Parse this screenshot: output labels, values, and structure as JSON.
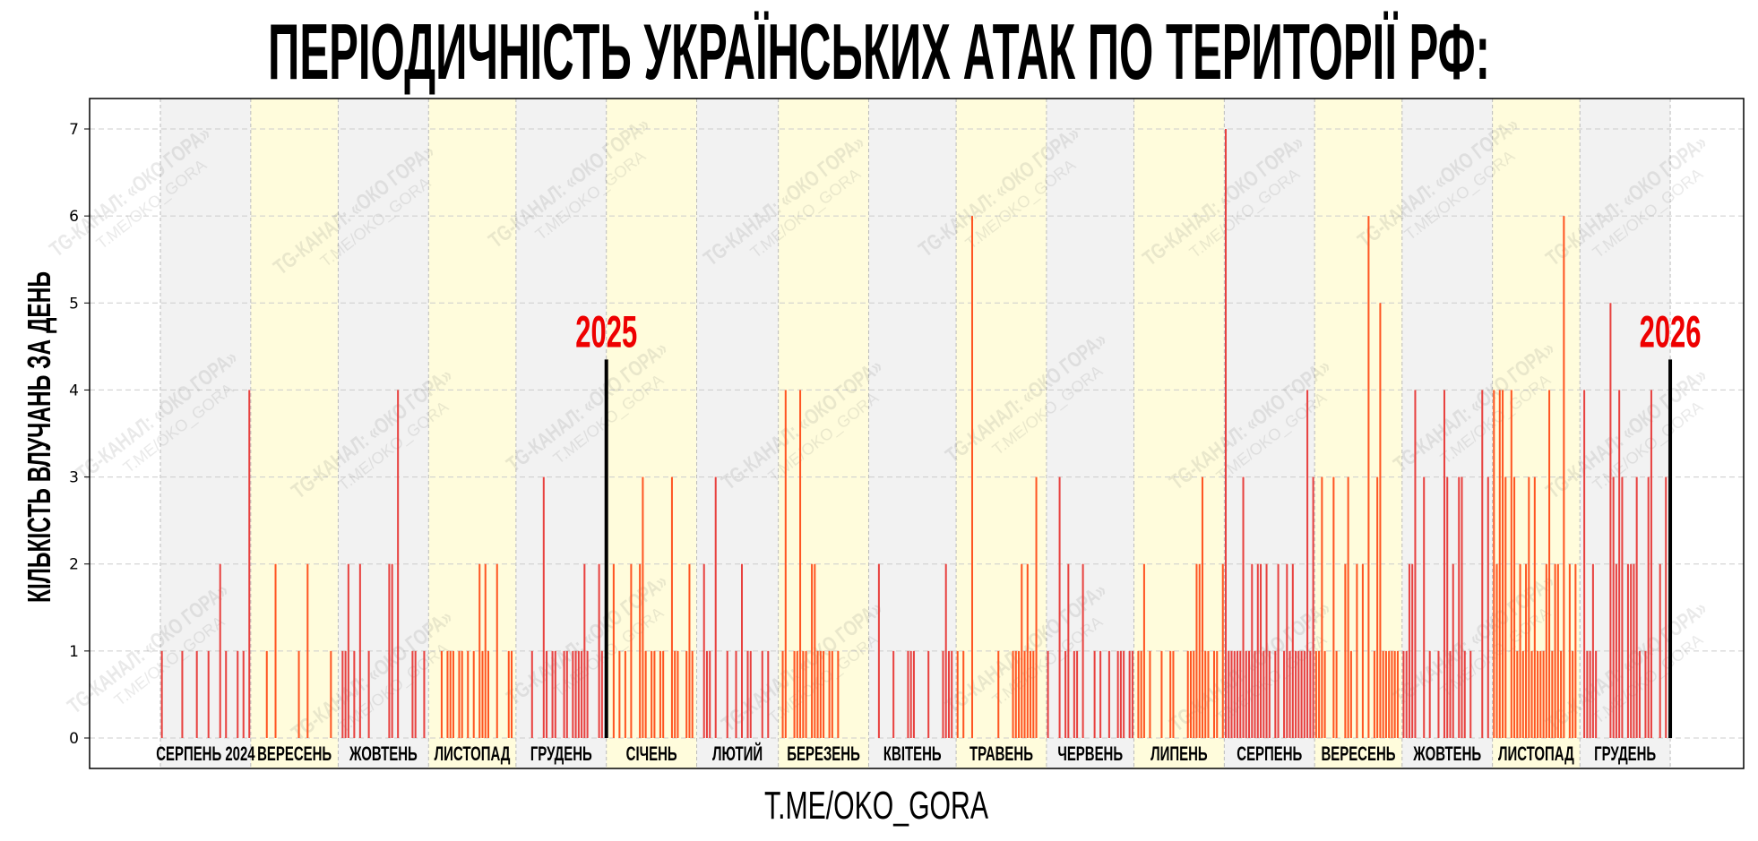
{
  "title": "ПЕРІОДИЧНІСТЬ УКРАЇНСЬКИХ АТАК ПО ТЕРИТОРІЇ РФ:",
  "footer": "T.ME/OKO_GORA",
  "watermark": {
    "line1": "TG-КАНАЛ: «ОКО ГОРА»",
    "line2": "T.ME/OKO_GORA"
  },
  "colors": {
    "bar_gray_month": "#e8413f",
    "bar_yellow_month": "#ff5522",
    "band_gray": "#f2f2f2",
    "band_yellow": "#fffcdc",
    "year_label": "#ee0000",
    "year_line": "#000000"
  },
  "chart_data": {
    "type": "bar",
    "title": "ПЕРІОДИЧНІСТЬ УКРАЇНСЬКИХ АТАК ПО ТЕРИТОРІЇ РФ:",
    "xlabel": "",
    "ylabel": "КІЛЬКІСТЬ ВЛУЧАНЬ ЗА ДЕНЬ",
    "ylim": [
      -0.35,
      7.35
    ],
    "xlim": [
      "2024-07-08",
      "2026-01-25"
    ],
    "yticks": [
      "0",
      "1",
      "2",
      "3",
      "4",
      "5",
      "6",
      "7"
    ],
    "grid": true,
    "start_date": "2024-08-01",
    "year_markers": [
      {
        "date": "2025-01-01",
        "label": "2025",
        "height": 4.35
      },
      {
        "date": "2026-01-01",
        "label": "2026",
        "height": 4.35
      }
    ],
    "months": [
      {
        "label": "СЕРПЕНЬ 2024",
        "band": "gray",
        "daily": [
          1,
          0,
          0,
          0,
          0,
          0,
          0,
          1,
          0,
          0,
          0,
          0,
          1,
          0,
          0,
          0,
          1,
          0,
          0,
          0,
          2,
          0,
          1,
          0,
          0,
          0,
          1,
          0,
          1,
          0,
          4
        ]
      },
      {
        "label": "ВЕРЕСЕНЬ",
        "band": "yellow",
        "daily": [
          0,
          0,
          0,
          0,
          0,
          1,
          0,
          0,
          2,
          0,
          0,
          0,
          0,
          0,
          0,
          0,
          1,
          0,
          0,
          2,
          0,
          0,
          0,
          0,
          0,
          0,
          0,
          1,
          0,
          0
        ]
      },
      {
        "label": "ЖОВТЕНЬ",
        "band": "gray",
        "daily": [
          0,
          1,
          1,
          2,
          0,
          1,
          0,
          2,
          0,
          0,
          1,
          0,
          0,
          0,
          0,
          0,
          0,
          2,
          2,
          0,
          4,
          0,
          0,
          0,
          0,
          1,
          1,
          0,
          0,
          1,
          0
        ]
      },
      {
        "label": "ЛИСТОПАД",
        "band": "yellow",
        "daily": [
          0,
          0,
          0,
          0,
          1,
          0,
          1,
          1,
          1,
          0,
          1,
          1,
          0,
          1,
          0,
          1,
          0,
          2,
          1,
          2,
          1,
          0,
          0,
          2,
          0,
          0,
          0,
          1,
          1,
          0
        ]
      },
      {
        "label": "ГРУДЕНЬ",
        "band": "gray",
        "daily": [
          0,
          0,
          0,
          0,
          0,
          1,
          0,
          0,
          0,
          3,
          1,
          0,
          1,
          1,
          0,
          0,
          1,
          1,
          0,
          1,
          1,
          1,
          1,
          2,
          1,
          0,
          0,
          0,
          2,
          1,
          0
        ]
      },
      {
        "label": "СІЧЕНЬ",
        "band": "yellow",
        "daily": [
          0,
          0,
          2,
          0,
          1,
          0,
          1,
          0,
          2,
          0,
          0,
          2,
          3,
          1,
          0,
          1,
          1,
          0,
          1,
          1,
          0,
          0,
          3,
          1,
          1,
          0,
          0,
          1,
          2,
          1,
          0
        ]
      },
      {
        "label": "ЛЮТИЙ",
        "band": "gray",
        "daily": [
          0,
          0,
          2,
          1,
          1,
          0,
          3,
          0,
          0,
          0,
          1,
          0,
          0,
          1,
          0,
          2,
          0,
          1,
          1,
          0,
          0,
          0,
          1,
          0,
          1,
          0,
          0,
          0
        ]
      },
      {
        "label": "БЕРЕЗЕНЬ",
        "band": "yellow",
        "daily": [
          0,
          1,
          4,
          0,
          0,
          1,
          1,
          4,
          1,
          1,
          0,
          2,
          2,
          1,
          1,
          1,
          0,
          1,
          1,
          0,
          1,
          0,
          0,
          0,
          0,
          0,
          0,
          0,
          0,
          0,
          0
        ]
      },
      {
        "label": "КВІТЕНЬ",
        "band": "gray",
        "daily": [
          0,
          0,
          0,
          2,
          0,
          0,
          0,
          0,
          1,
          0,
          0,
          0,
          0,
          1,
          1,
          1,
          0,
          0,
          0,
          0,
          1,
          0,
          0,
          0,
          0,
          1,
          2,
          1,
          1,
          0
        ]
      },
      {
        "label": "ТРАВЕНЬ",
        "band": "yellow",
        "daily": [
          1,
          0,
          1,
          0,
          0,
          6,
          0,
          0,
          0,
          0,
          0,
          0,
          0,
          0,
          1,
          0,
          0,
          0,
          0,
          1,
          1,
          1,
          2,
          1,
          2,
          1,
          1,
          3,
          0,
          0,
          0
        ]
      },
      {
        "label": "ЧЕРВЕНЬ",
        "band": "gray",
        "daily": [
          1,
          0,
          0,
          0,
          3,
          0,
          1,
          2,
          0,
          1,
          1,
          0,
          2,
          0,
          0,
          0,
          1,
          0,
          1,
          0,
          0,
          1,
          0,
          0,
          1,
          1,
          1,
          0,
          1,
          1
        ]
      },
      {
        "label": "ЛИПЕНЬ",
        "band": "yellow",
        "daily": [
          0,
          1,
          1,
          2,
          0,
          1,
          0,
          0,
          0,
          1,
          0,
          0,
          1,
          1,
          0,
          0,
          0,
          0,
          1,
          1,
          1,
          2,
          2,
          3,
          1,
          1,
          0,
          1,
          1,
          0,
          2
        ]
      },
      {
        "label": "СЕРПЕНЬ",
        "band": "gray",
        "daily": [
          7,
          1,
          1,
          1,
          1,
          1,
          3,
          1,
          1,
          2,
          1,
          2,
          2,
          1,
          2,
          1,
          0,
          1,
          2,
          0,
          1,
          2,
          1,
          2,
          1,
          1,
          1,
          1,
          4,
          1,
          3
        ]
      },
      {
        "label": "ВЕРЕСЕНЬ",
        "band": "yellow",
        "daily": [
          1,
          1,
          3,
          1,
          0,
          0,
          3,
          1,
          0,
          0,
          2,
          3,
          1,
          0,
          2,
          0,
          2,
          0,
          6,
          0,
          1,
          3,
          5,
          1,
          1,
          1,
          1,
          1,
          1,
          0
        ]
      },
      {
        "label": "ЖОВТЕНЬ",
        "band": "gray",
        "daily": [
          1,
          1,
          2,
          2,
          4,
          0,
          0,
          3,
          0,
          1,
          0,
          0,
          1,
          0,
          4,
          3,
          1,
          2,
          0,
          3,
          3,
          1,
          0,
          1,
          0,
          0,
          0,
          4,
          0,
          3,
          0
        ]
      },
      {
        "label": "ЛИСТОПАД",
        "band": "yellow",
        "daily": [
          4,
          2,
          4,
          4,
          3,
          0,
          4,
          3,
          1,
          2,
          1,
          2,
          3,
          1,
          3,
          1,
          1,
          1,
          2,
          4,
          1,
          2,
          2,
          1,
          6,
          0,
          2,
          1,
          2,
          0
        ]
      },
      {
        "label": "ГРУДЕНЬ",
        "band": "gray",
        "daily": [
          0,
          4,
          1,
          1,
          2,
          1,
          0,
          0,
          0,
          0,
          5,
          3,
          2,
          4,
          3,
          0,
          2,
          2,
          2,
          3,
          1,
          0,
          1,
          3,
          4,
          0,
          0,
          2,
          0,
          3,
          0
        ]
      }
    ]
  }
}
